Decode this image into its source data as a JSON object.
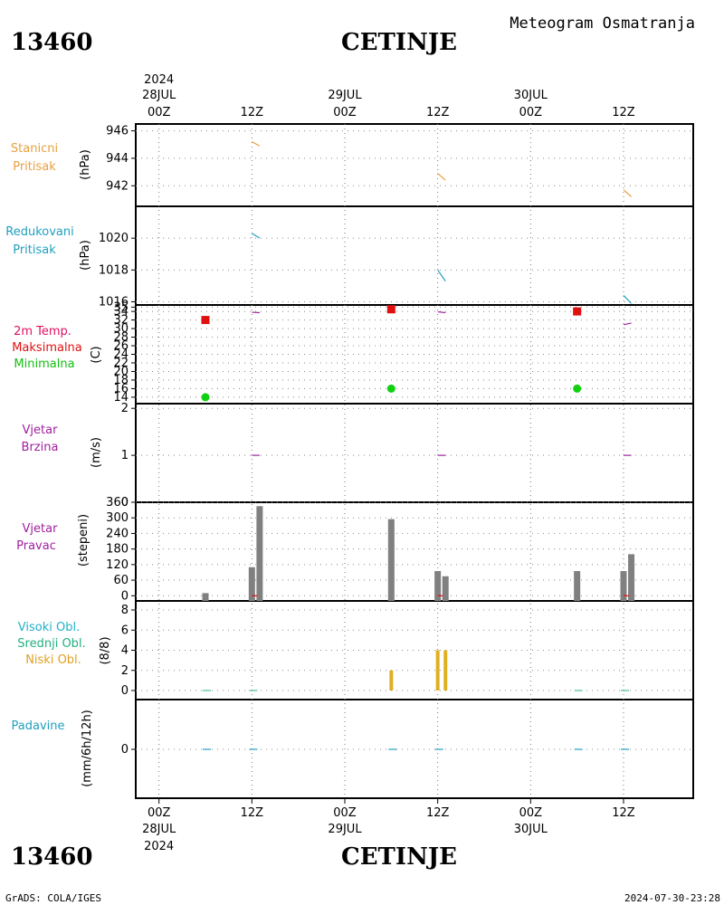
{
  "header": {
    "station_id": "13460",
    "station_name": "CETINJE",
    "product": "Meteogram Osmatranja"
  },
  "footer": {
    "station_id": "13460",
    "station_name": "CETINJE",
    "credit": "GrADS: COLA/IGES",
    "timestamp": "2024-07-30-23:28"
  },
  "time_axis": {
    "year": "2024",
    "top_labels": [
      {
        "hour": "00Z",
        "date": "28JUL",
        "t": 0
      },
      {
        "hour": "12Z",
        "date": "",
        "t": 12
      },
      {
        "hour": "00Z",
        "date": "29JUL",
        "t": 24
      },
      {
        "hour": "12Z",
        "date": "",
        "t": 36
      },
      {
        "hour": "00Z",
        "date": "30JUL",
        "t": 48
      },
      {
        "hour": "12Z",
        "date": "",
        "t": 60
      }
    ],
    "t_min": -3,
    "t_max": 69
  },
  "colors": {
    "stanicni": "#e8a040",
    "redukovani": "#20a0c0",
    "max": "#e01010",
    "min": "#10d010",
    "wind": "#a020a0",
    "bar": "#808080",
    "cloud_low": "#e0b020",
    "cloud_mid": "#20b080",
    "cloud_high": "#20b0c8",
    "precip": "#20a0c0"
  },
  "panels": {
    "stanicni": {
      "label1": "Stanicni",
      "label2": "Pritisak",
      "unit": "(hPa)"
    },
    "redukovani": {
      "label1": "Redukovani",
      "label2": "Pritisak",
      "unit": "(hPa)"
    },
    "temp": {
      "label1": "2m Temp.",
      "label2": "Maksimalna",
      "label3": "Minimalna",
      "unit": "(C)"
    },
    "brzina": {
      "label1": "Vjetar",
      "label2": "Brzina",
      "unit": "(m/s)"
    },
    "pravac": {
      "label1": "Vjetar",
      "label2": "Pravac",
      "unit": "(stepeni)"
    },
    "oblaci": {
      "label1": "Visoki Obl.",
      "label2": "Srednji Obl.",
      "label3": "Niski Obl.",
      "unit": "(8/8)"
    },
    "padavine": {
      "label1": "Padavine",
      "unit": "(mm/6h/12h)"
    }
  },
  "chart_data": [
    {
      "type": "line",
      "name_key": "stanicni",
      "ylim": [
        940.5,
        946.5
      ],
      "yticks": [
        942,
        944,
        946
      ],
      "series": [
        {
          "segments": [
            [
              [
                12.0,
                945.2
              ],
              [
                13.0,
                944.9
              ]
            ],
            [
              [
                36.0,
                942.9
              ],
              [
                37.0,
                942.4
              ]
            ],
            [
              [
                60.0,
                941.7
              ],
              [
                61.0,
                941.2
              ]
            ]
          ]
        }
      ]
    },
    {
      "type": "line",
      "name_key": "redukovani",
      "ylim": [
        1015.8,
        1022
      ],
      "yticks": [
        1016,
        1018,
        1020
      ],
      "series": [
        {
          "segments": [
            [
              [
                12.0,
                1020.3
              ],
              [
                13.0,
                1020.0
              ]
            ],
            [
              [
                36.0,
                1018.0
              ],
              [
                37.0,
                1017.3
              ]
            ],
            [
              [
                60.0,
                1016.4
              ],
              [
                61.0,
                1015.9
              ]
            ]
          ]
        }
      ]
    },
    {
      "type": "scatter",
      "name_key": "temp",
      "ylim": [
        12.5,
        35.5
      ],
      "yticks": [
        14,
        16,
        18,
        20,
        22,
        24,
        26,
        28,
        30,
        32,
        34,
        35
      ],
      "max_points": [
        [
          6,
          32
        ],
        [
          30,
          34.5
        ],
        [
          54,
          34
        ]
      ],
      "min_points": [
        [
          6,
          14
        ],
        [
          30,
          16
        ],
        [
          54,
          16
        ]
      ],
      "curve_segments": [
        [
          [
            12.0,
            33.8
          ],
          [
            13.0,
            33.7
          ]
        ],
        [
          [
            36.0,
            33.9
          ],
          [
            37.0,
            33.7
          ]
        ],
        [
          [
            60.0,
            30.9
          ],
          [
            61.0,
            31.3
          ]
        ]
      ]
    },
    {
      "type": "line",
      "name_key": "brzina",
      "ylim": [
        0,
        2.1
      ],
      "yticks": [
        0,
        1,
        2
      ],
      "segments": [
        [
          [
            12.0,
            1
          ],
          [
            13.0,
            1
          ]
        ],
        [
          [
            36.0,
            1
          ],
          [
            37.0,
            1
          ]
        ],
        [
          [
            60.0,
            1
          ],
          [
            61.0,
            1
          ]
        ]
      ]
    },
    {
      "type": "bar",
      "name_key": "pravac",
      "ylim": [
        -20,
        360
      ],
      "yticks": [
        0,
        60,
        120,
        180,
        240,
        300,
        360
      ],
      "bars": [
        [
          6,
          10
        ],
        [
          12,
          110
        ],
        [
          13,
          345
        ],
        [
          30,
          295
        ],
        [
          36,
          95
        ],
        [
          37,
          75
        ],
        [
          54,
          95
        ],
        [
          60,
          95
        ],
        [
          61,
          160
        ]
      ]
    },
    {
      "type": "bar",
      "name_key": "oblaci",
      "ylim": [
        0,
        8.5
      ],
      "yticks": [
        0,
        2,
        4,
        6,
        8
      ],
      "low_bars": [
        [
          30,
          2
        ],
        [
          36,
          4
        ],
        [
          37,
          4
        ]
      ]
    },
    {
      "type": "line",
      "name_key": "padavine",
      "yticks": [
        0
      ],
      "zero_ticks": [
        6,
        12,
        30,
        36,
        54,
        60
      ]
    }
  ]
}
